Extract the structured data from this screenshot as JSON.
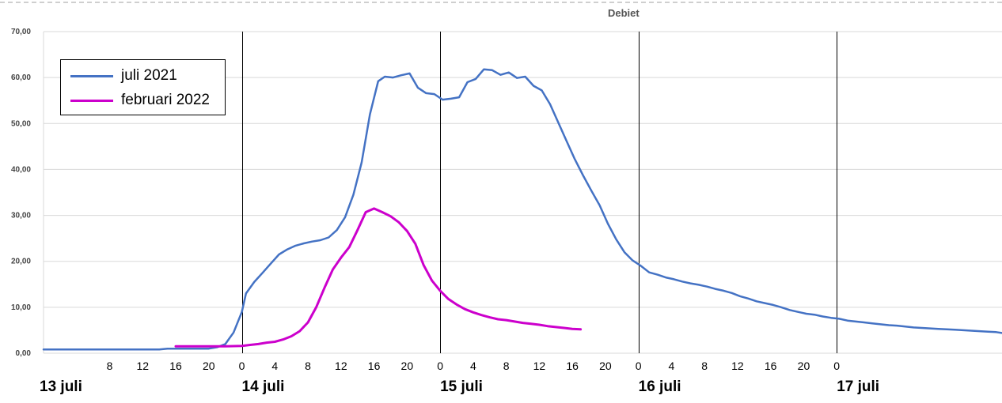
{
  "chart_data": {
    "type": "line",
    "title": "Debiet",
    "xlabel": "",
    "ylabel": "",
    "ylim": [
      0,
      70
    ],
    "y_ticks": [
      "0,00",
      "10,00",
      "20,00",
      "30,00",
      "40,00",
      "50,00",
      "60,00",
      "70,00"
    ],
    "x_range_hours": [
      0,
      116
    ],
    "hour_ticks": [
      {
        "h": 8,
        "label": "8"
      },
      {
        "h": 12,
        "label": "12"
      },
      {
        "h": 16,
        "label": "16"
      },
      {
        "h": 20,
        "label": "20"
      },
      {
        "h": 24,
        "label": "0"
      },
      {
        "h": 28,
        "label": "4"
      },
      {
        "h": 32,
        "label": "8"
      },
      {
        "h": 36,
        "label": "12"
      },
      {
        "h": 40,
        "label": "16"
      },
      {
        "h": 44,
        "label": "20"
      },
      {
        "h": 48,
        "label": "0"
      },
      {
        "h": 52,
        "label": "4"
      },
      {
        "h": 56,
        "label": "8"
      },
      {
        "h": 60,
        "label": "12"
      },
      {
        "h": 64,
        "label": "16"
      },
      {
        "h": 68,
        "label": "20"
      },
      {
        "h": 72,
        "label": "0"
      },
      {
        "h": 76,
        "label": "4"
      },
      {
        "h": 80,
        "label": "8"
      },
      {
        "h": 84,
        "label": "12"
      },
      {
        "h": 88,
        "label": "16"
      },
      {
        "h": 92,
        "label": "20"
      },
      {
        "h": 96,
        "label": "0"
      }
    ],
    "day_labels": [
      {
        "h": 0,
        "label": "13 juli"
      },
      {
        "h": 24,
        "label": "14 juli"
      },
      {
        "h": 48,
        "label": "15 juli"
      },
      {
        "h": 72,
        "label": "16 juli"
      },
      {
        "h": 96,
        "label": "17 juli"
      }
    ],
    "day_lines": [
      24,
      48,
      72,
      96
    ],
    "grid": true,
    "legend_position": "top-left",
    "series": [
      {
        "name": "juli 2021",
        "color": "#4472c4",
        "points": [
          [
            0,
            0.8
          ],
          [
            4,
            0.8
          ],
          [
            8,
            0.8
          ],
          [
            12,
            0.8
          ],
          [
            14,
            0.8
          ],
          [
            15,
            1.0
          ],
          [
            20,
            1.0
          ],
          [
            21,
            1.3
          ],
          [
            22,
            2.0
          ],
          [
            23,
            4.5
          ],
          [
            24,
            9
          ],
          [
            24.5,
            13
          ],
          [
            25.5,
            15.5
          ],
          [
            26.5,
            17.5
          ],
          [
            27.5,
            19.5
          ],
          [
            28.5,
            21.5
          ],
          [
            29.5,
            22.6
          ],
          [
            30.5,
            23.4
          ],
          [
            31.5,
            23.9
          ],
          [
            32.5,
            24.3
          ],
          [
            33.5,
            24.6
          ],
          [
            34.5,
            25.2
          ],
          [
            35.5,
            26.8
          ],
          [
            36.5,
            29.6
          ],
          [
            37.5,
            34.5
          ],
          [
            38.5,
            41.5
          ],
          [
            39.5,
            52
          ],
          [
            40.5,
            59.2
          ],
          [
            41.3,
            60.2
          ],
          [
            42.3,
            60.0
          ],
          [
            43.3,
            60.5
          ],
          [
            44.3,
            60.9
          ],
          [
            45.3,
            57.8
          ],
          [
            46.3,
            56.6
          ],
          [
            47.3,
            56.4
          ],
          [
            48.3,
            55.2
          ],
          [
            49.3,
            55.4
          ],
          [
            50.3,
            55.7
          ],
          [
            51.3,
            59.0
          ],
          [
            52.3,
            59.7
          ],
          [
            53.3,
            61.8
          ],
          [
            54.3,
            61.6
          ],
          [
            55.3,
            60.6
          ],
          [
            56.3,
            61.1
          ],
          [
            57.3,
            59.9
          ],
          [
            58.3,
            60.2
          ],
          [
            59.3,
            58.2
          ],
          [
            60.3,
            57.2
          ],
          [
            61.3,
            54.2
          ],
          [
            62.3,
            50.2
          ],
          [
            63.3,
            46.2
          ],
          [
            64.3,
            42.2
          ],
          [
            65.3,
            38.7
          ],
          [
            66.3,
            35.4
          ],
          [
            67.3,
            32.2
          ],
          [
            68.3,
            28.2
          ],
          [
            69.3,
            24.8
          ],
          [
            70.3,
            22.0
          ],
          [
            71.3,
            20.2
          ],
          [
            72.3,
            19.0
          ],
          [
            73.3,
            17.6
          ],
          [
            74.3,
            17.1
          ],
          [
            75.3,
            16.5
          ],
          [
            76.3,
            16.1
          ],
          [
            77.3,
            15.6
          ],
          [
            78.3,
            15.2
          ],
          [
            79.3,
            14.9
          ],
          [
            80.3,
            14.5
          ],
          [
            81.3,
            14.0
          ],
          [
            82.3,
            13.6
          ],
          [
            83.3,
            13.1
          ],
          [
            84.3,
            12.4
          ],
          [
            85.3,
            11.9
          ],
          [
            86.3,
            11.3
          ],
          [
            87.3,
            10.9
          ],
          [
            88.3,
            10.5
          ],
          [
            89.3,
            10.0
          ],
          [
            90.3,
            9.4
          ],
          [
            91.3,
            9.0
          ],
          [
            92.3,
            8.6
          ],
          [
            93.3,
            8.4
          ],
          [
            94.3,
            8.0
          ],
          [
            95.3,
            7.7
          ],
          [
            96.3,
            7.5
          ],
          [
            97.3,
            7.1
          ],
          [
            98.3,
            6.9
          ],
          [
            99.3,
            6.7
          ],
          [
            100.3,
            6.5
          ],
          [
            101.3,
            6.3
          ],
          [
            102.3,
            6.1
          ],
          [
            103.3,
            6.0
          ],
          [
            104.3,
            5.8
          ],
          [
            105.3,
            5.6
          ],
          [
            106.3,
            5.5
          ],
          [
            107.3,
            5.4
          ],
          [
            108.3,
            5.3
          ],
          [
            109.3,
            5.2
          ],
          [
            110.3,
            5.1
          ],
          [
            111.3,
            5.0
          ],
          [
            112.3,
            4.9
          ],
          [
            113.3,
            4.8
          ],
          [
            114.3,
            4.7
          ],
          [
            115.3,
            4.6
          ],
          [
            116,
            4.4
          ]
        ]
      },
      {
        "name": "februari 2022",
        "color": "#cc00cc",
        "points": [
          [
            16,
            1.5
          ],
          [
            18,
            1.5
          ],
          [
            20,
            1.5
          ],
          [
            22,
            1.5
          ],
          [
            24,
            1.6
          ],
          [
            25,
            1.8
          ],
          [
            26,
            2.0
          ],
          [
            27,
            2.3
          ],
          [
            28,
            2.5
          ],
          [
            29,
            3.0
          ],
          [
            30,
            3.7
          ],
          [
            31,
            4.8
          ],
          [
            32,
            6.7
          ],
          [
            33,
            10.0
          ],
          [
            34,
            14.2
          ],
          [
            35,
            18.2
          ],
          [
            36,
            20.8
          ],
          [
            37,
            23.1
          ],
          [
            38,
            26.8
          ],
          [
            39,
            30.7
          ],
          [
            40,
            31.5
          ],
          [
            41,
            30.7
          ],
          [
            42,
            29.8
          ],
          [
            43,
            28.5
          ],
          [
            44,
            26.6
          ],
          [
            45,
            23.8
          ],
          [
            46,
            19.2
          ],
          [
            47,
            15.8
          ],
          [
            48,
            13.6
          ],
          [
            49,
            11.8
          ],
          [
            50,
            10.6
          ],
          [
            51,
            9.6
          ],
          [
            52,
            8.9
          ],
          [
            53,
            8.3
          ],
          [
            54,
            7.8
          ],
          [
            55,
            7.4
          ],
          [
            56,
            7.2
          ],
          [
            57,
            6.9
          ],
          [
            58,
            6.6
          ],
          [
            59,
            6.4
          ],
          [
            60,
            6.2
          ],
          [
            61,
            5.9
          ],
          [
            62,
            5.7
          ],
          [
            63,
            5.5
          ],
          [
            64,
            5.3
          ],
          [
            65,
            5.2
          ]
        ]
      }
    ]
  }
}
